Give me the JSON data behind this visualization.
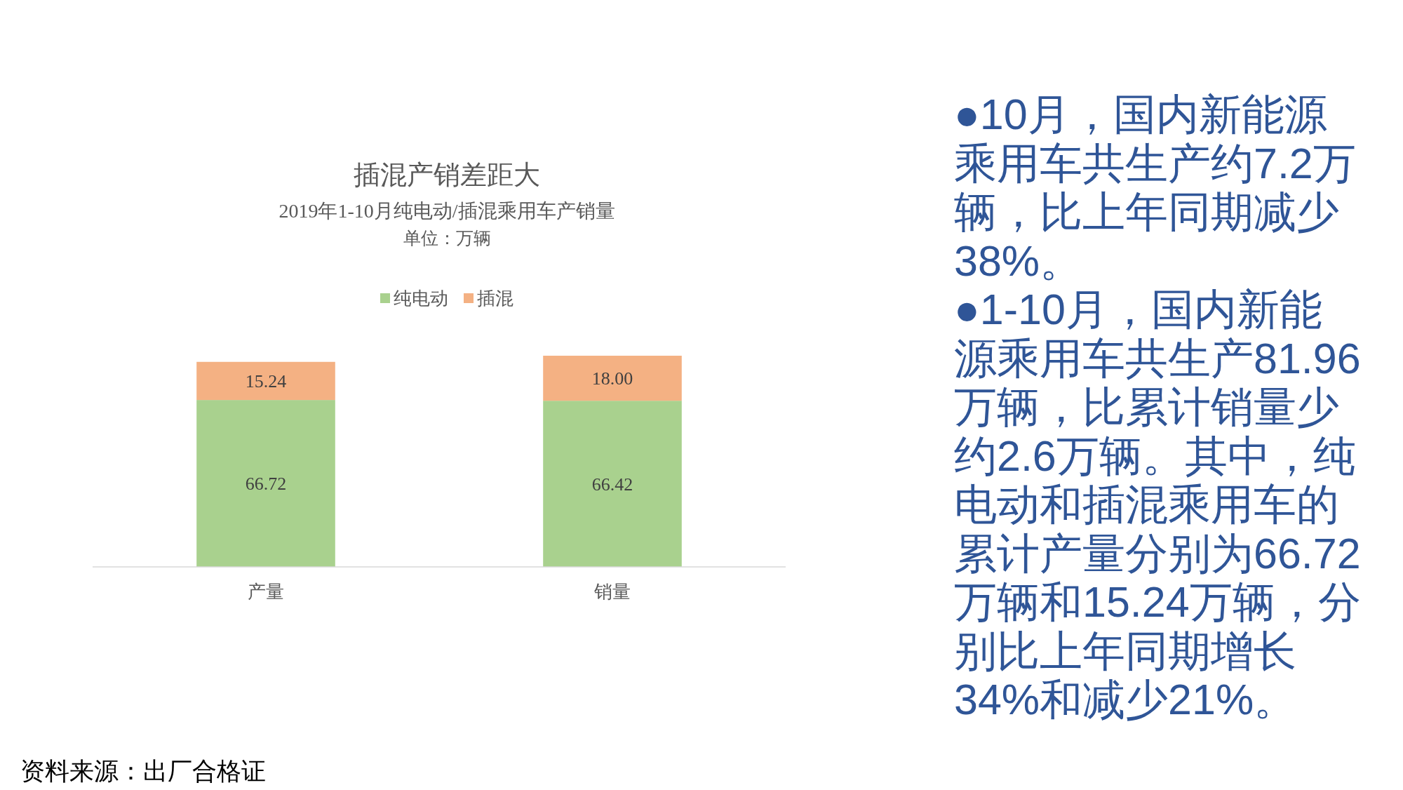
{
  "chart_data": {
    "type": "bar",
    "title": "插混产销差距大",
    "subtitle": "2019年1-10月纯电动/插混乘用车产销量",
    "categories": [
      "产量",
      "销量"
    ],
    "stacked": true,
    "series": [
      {
        "name": "纯电动",
        "color": "#a9d18e",
        "values": [
          66.72,
          66.42
        ],
        "value_labels": [
          "66.72",
          "66.42"
        ]
      },
      {
        "name": "插混",
        "color": "#f4b183",
        "values": [
          15.24,
          18.0
        ],
        "value_labels": [
          "15.24",
          "18.00"
        ]
      }
    ],
    "legend": "top",
    "tick_labels": "x",
    "annotations": [
      "单位：万辆",
      "资料来源：出厂合格证",
      "●10月，国内新能源乘用车共生产约7.2万辆，比上年同期减少38%。",
      "●1-10月，国内新能源乘用车共生产81.96万辆，比累计销量少约2.6万辆。其中，纯电动和插混乘用车的累计产量分别为66.72万辆和15.24万辆，分别比上年同期增长34%和减少21%。"
    ]
  }
}
